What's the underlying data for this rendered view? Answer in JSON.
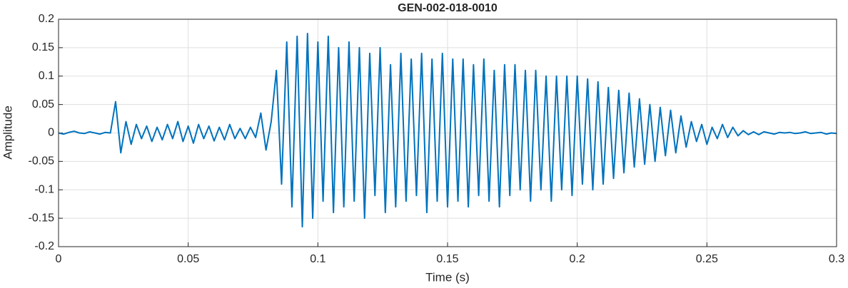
{
  "chart_data": {
    "type": "line",
    "title": "GEN-002-018-0010",
    "xlabel": "Time (s)",
    "ylabel": "Amplitude",
    "x": [
      0,
      0.002,
      0.004,
      0.006,
      0.008,
      0.01,
      0.012,
      0.014,
      0.016,
      0.018,
      0.02,
      0.022,
      0.024,
      0.026,
      0.028,
      0.03,
      0.032,
      0.034,
      0.036,
      0.038,
      0.04,
      0.042,
      0.044,
      0.046,
      0.048,
      0.05,
      0.052,
      0.054,
      0.056,
      0.058,
      0.06,
      0.062,
      0.064,
      0.066,
      0.068,
      0.07,
      0.072,
      0.074,
      0.076,
      0.078,
      0.08,
      0.082,
      0.084,
      0.086,
      0.088,
      0.09,
      0.092,
      0.094,
      0.096,
      0.098,
      0.1,
      0.102,
      0.104,
      0.106,
      0.108,
      0.11,
      0.112,
      0.114,
      0.116,
      0.118,
      0.12,
      0.122,
      0.124,
      0.126,
      0.128,
      0.13,
      0.132,
      0.134,
      0.136,
      0.138,
      0.14,
      0.142,
      0.144,
      0.146,
      0.148,
      0.15,
      0.152,
      0.154,
      0.156,
      0.158,
      0.16,
      0.162,
      0.164,
      0.166,
      0.168,
      0.17,
      0.172,
      0.174,
      0.176,
      0.178,
      0.18,
      0.182,
      0.184,
      0.186,
      0.188,
      0.19,
      0.192,
      0.194,
      0.196,
      0.198,
      0.2,
      0.202,
      0.204,
      0.206,
      0.208,
      0.21,
      0.212,
      0.214,
      0.216,
      0.218,
      0.22,
      0.222,
      0.224,
      0.226,
      0.228,
      0.23,
      0.232,
      0.234,
      0.236,
      0.238,
      0.24,
      0.242,
      0.244,
      0.246,
      0.248,
      0.25,
      0.252,
      0.254,
      0.256,
      0.258,
      0.26,
      0.262,
      0.264,
      0.266,
      0.268,
      0.27,
      0.272,
      0.274,
      0.276,
      0.278,
      0.28,
      0.282,
      0.284,
      0.286,
      0.288,
      0.29,
      0.292,
      0.294,
      0.296,
      0.298,
      0.3
    ],
    "series": [
      {
        "name": "Amplitude",
        "color": "#0072bd",
        "values": [
          0,
          -0.002,
          0.001,
          0.003,
          0,
          -0.001,
          0.002,
          0,
          -0.002,
          0.001,
          0,
          0.055,
          -0.035,
          0.02,
          -0.02,
          0.015,
          -0.01,
          0.012,
          -0.015,
          0.01,
          -0.012,
          0.015,
          -0.01,
          0.02,
          -0.015,
          0.012,
          -0.018,
          0.015,
          -0.01,
          0.012,
          -0.014,
          0.01,
          -0.012,
          0.015,
          -0.01,
          0.008,
          -0.01,
          0.01,
          -0.008,
          0.035,
          -0.03,
          0.02,
          0.11,
          -0.09,
          0.16,
          -0.13,
          0.17,
          -0.165,
          0.175,
          -0.15,
          0.16,
          -0.12,
          0.17,
          -0.14,
          0.15,
          -0.13,
          0.16,
          -0.12,
          0.15,
          -0.15,
          0.14,
          -0.11,
          0.15,
          -0.14,
          0.12,
          -0.13,
          0.14,
          -0.12,
          0.13,
          -0.11,
          0.14,
          -0.14,
          0.13,
          -0.12,
          0.14,
          -0.13,
          0.13,
          -0.12,
          0.13,
          -0.13,
          0.12,
          -0.11,
          0.13,
          -0.12,
          0.11,
          -0.13,
          0.12,
          -0.11,
          0.12,
          -0.1,
          0.11,
          -0.12,
          0.11,
          -0.1,
          0.1,
          -0.12,
          0.1,
          -0.1,
          0.1,
          -0.11,
          0.1,
          -0.09,
          0.095,
          -0.1,
          0.09,
          -0.09,
          0.08,
          -0.08,
          0.075,
          -0.07,
          0.07,
          -0.06,
          0.06,
          -0.055,
          0.05,
          -0.05,
          0.045,
          -0.04,
          0.04,
          -0.035,
          0.03,
          -0.025,
          0.02,
          -0.015,
          0.015,
          -0.02,
          0.01,
          -0.01,
          0.015,
          -0.008,
          0.01,
          -0.005,
          0.004,
          -0.003,
          0.002,
          -0.003,
          0.002,
          0,
          -0.002,
          0.001,
          0,
          0.001,
          -0.001,
          0,
          0.002,
          -0.001,
          0,
          0.001,
          -0.002,
          0,
          -0.001
        ]
      }
    ],
    "xlim": [
      0,
      0.3
    ],
    "xticks": [
      0,
      0.05,
      0.1,
      0.15,
      0.2,
      0.25,
      0.3
    ],
    "ylim": [
      -0.2,
      0.2
    ],
    "yticks": [
      -0.2,
      -0.15,
      -0.1,
      -0.05,
      0,
      0.05,
      0.1,
      0.15,
      0.2
    ],
    "grid": true
  }
}
